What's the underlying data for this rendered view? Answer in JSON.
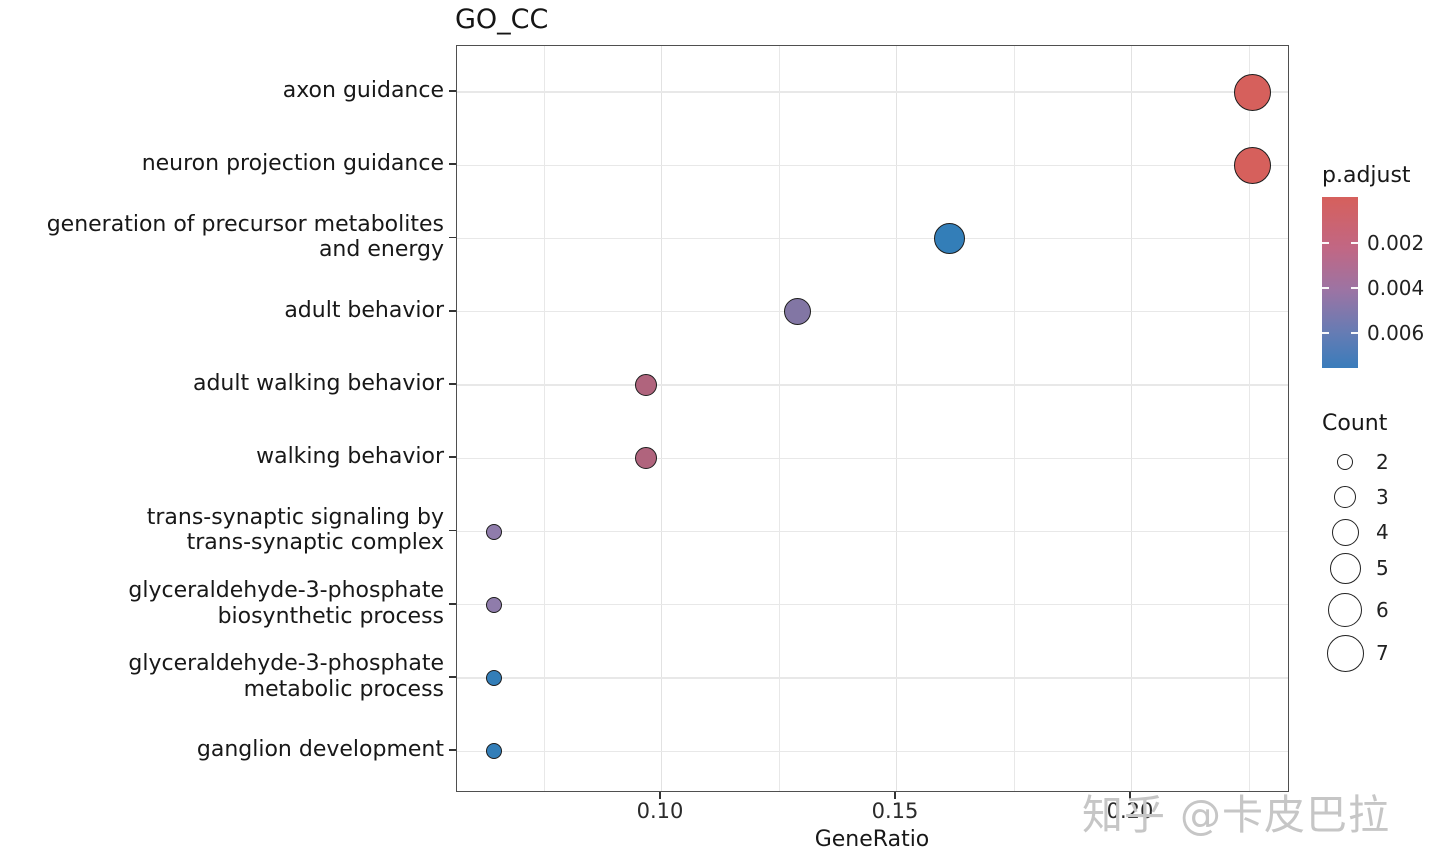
{
  "watermark": "知乎 @卡皮巴拉",
  "chart_data": {
    "type": "scatter",
    "title": "GO_CC",
    "xlabel": "GeneRatio",
    "grid": true,
    "legend_position": "right",
    "xlim": [
      0.057,
      0.234
    ],
    "x_major_ticks": [
      0.1,
      0.15,
      0.2
    ],
    "x_tick_labels": [
      "0.10",
      "0.15",
      "0.20"
    ],
    "x_minor_ticks": [
      0.075,
      0.125,
      0.175,
      0.225
    ],
    "points": [
      {
        "term": "axon guidance",
        "gene_ratio": 0.2258,
        "count": 7,
        "p_adjust": 0.0004,
        "color": "#d6605c"
      },
      {
        "term": "neuron projection guidance",
        "gene_ratio": 0.2258,
        "count": 7,
        "p_adjust": 0.0004,
        "color": "#d6605c"
      },
      {
        "term": "generation of precursor metabolites\nand energy",
        "gene_ratio": 0.1613,
        "count": 5,
        "p_adjust": 0.0068,
        "color": "#337eb8"
      },
      {
        "term": "adult behavior",
        "gene_ratio": 0.129,
        "count": 4,
        "p_adjust": 0.0045,
        "color": "#8276a4"
      },
      {
        "term": "adult walking behavior",
        "gene_ratio": 0.0968,
        "count": 3,
        "p_adjust": 0.0022,
        "color": "#b0647d"
      },
      {
        "term": "walking behavior",
        "gene_ratio": 0.0968,
        "count": 3,
        "p_adjust": 0.0022,
        "color": "#b0647d"
      },
      {
        "term": "trans-synaptic signaling by\ntrans-synaptic complex",
        "gene_ratio": 0.0645,
        "count": 2,
        "p_adjust": 0.004,
        "color": "#8f7cab"
      },
      {
        "term": "glyceraldehyde-3-phosphate\nbiosynthetic process",
        "gene_ratio": 0.0645,
        "count": 2,
        "p_adjust": 0.004,
        "color": "#8f7cab"
      },
      {
        "term": "glyceraldehyde-3-phosphate\nmetabolic process",
        "gene_ratio": 0.0645,
        "count": 2,
        "p_adjust": 0.0068,
        "color": "#337eb8"
      },
      {
        "term": "ganglion development",
        "gene_ratio": 0.0645,
        "count": 2,
        "p_adjust": 0.0068,
        "color": "#337eb8"
      }
    ],
    "legend_color": {
      "title": "p.adjust",
      "tick_labels": [
        "0.002",
        "0.004",
        "0.006"
      ],
      "gradient": [
        "#d6605c",
        "#c16784",
        "#9b74a4",
        "#647cb4",
        "#3a7cbb"
      ]
    },
    "legend_size": {
      "title": "Count",
      "entries": [
        "2",
        "3",
        "4",
        "5",
        "6",
        "7"
      ]
    }
  }
}
